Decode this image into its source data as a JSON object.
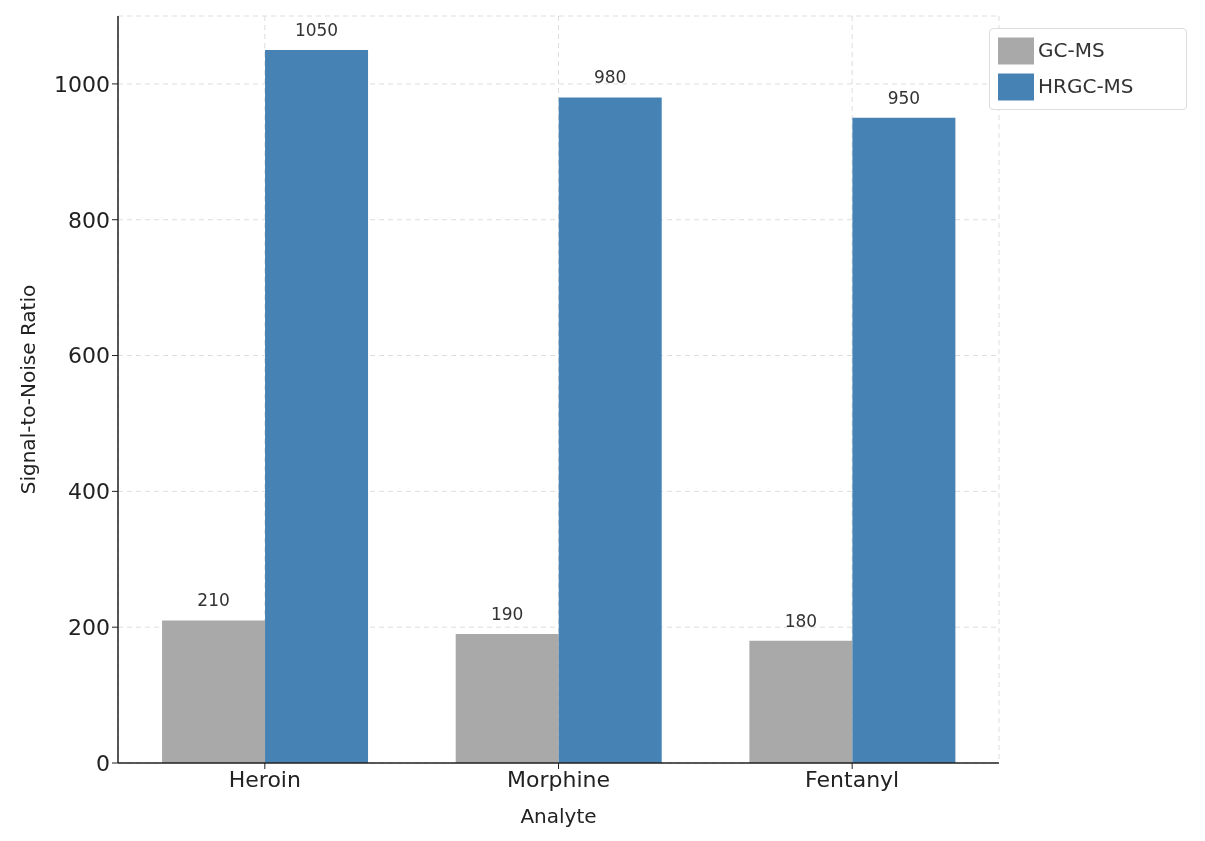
{
  "chart_data": {
    "type": "bar",
    "xlabel": "Analyte",
    "ylabel": "Signal-to-Noise Ratio",
    "categories": [
      "Heroin",
      "Morphine",
      "Fentanyl"
    ],
    "series": [
      {
        "name": "GC-MS",
        "color": "#a9a9a9",
        "values": [
          210,
          190,
          180
        ]
      },
      {
        "name": "HRGC-MS",
        "color": "#4682b4",
        "values": [
          1050,
          980,
          950
        ]
      }
    ],
    "ylim": [
      0,
      1100
    ],
    "yticks": [
      0,
      200,
      400,
      600,
      800,
      1000
    ],
    "grid": true,
    "legend": "top right",
    "data_labels": true
  }
}
